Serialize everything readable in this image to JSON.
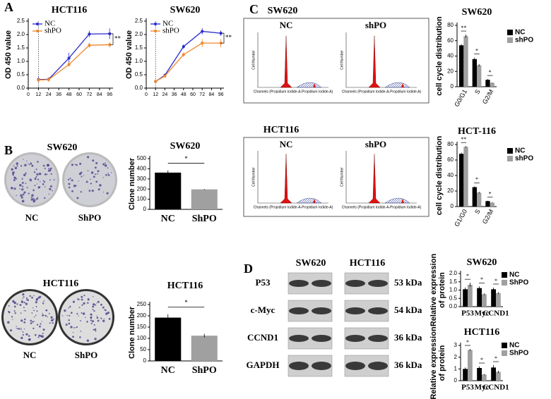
{
  "figure": {
    "panel_labels": [
      "A",
      "B",
      "C",
      "D"
    ],
    "colony": [
      {
        "title": "SW620",
        "labels": [
          "NC",
          "ShPO"
        ]
      },
      {
        "title": "HCT116",
        "labels": [
          "NC",
          "ShPO"
        ]
      }
    ],
    "flow": [
      {
        "title": "SW620",
        "labels": [
          "NC",
          "shPO"
        ]
      },
      {
        "title": "HCT116",
        "labels": [
          "NC",
          "shPO"
        ]
      }
    ],
    "flow_axes": {
      "y_label": "Cell Number",
      "x_label": "Channels (Propidium Iodide-A-Propidium Iodide-A)"
    },
    "western": {
      "columns": [
        "SW620",
        "HCT116"
      ],
      "rows": [
        "P53",
        "c-Myc",
        "CCND1",
        "GAPDH"
      ],
      "sizes": [
        "53 kDa",
        "54 kDa",
        "36 kDa",
        "36 kDa"
      ]
    }
  },
  "chart_data": [
    {
      "type": "line",
      "title": "HCT116",
      "y_label": "OD 450 value",
      "x": [
        12,
        24,
        48,
        72,
        96
      ],
      "xlim": [
        0,
        100
      ],
      "xticks": [
        0,
        12,
        24,
        36,
        48,
        60,
        72,
        84,
        96
      ],
      "ylim": [
        0,
        2.5
      ],
      "yticks": [
        {
          "value": 0,
          "label": "0.0"
        },
        {
          "value": 0.5,
          "label": "0.5"
        },
        {
          "value": 1,
          "label": "1.0"
        },
        {
          "value": 1.5,
          "label": "1.5"
        },
        {
          "value": 2,
          "label": "2.0"
        },
        {
          "value": 2.5,
          "label": "2.5"
        }
      ],
      "vline": 12,
      "annotation": "**",
      "series": [
        {
          "name": "NC",
          "color": "#2a2ad0",
          "values": [
            0.32,
            0.33,
            1.12,
            2.02,
            2.03
          ],
          "errors": [
            0.1,
            0.08,
            0.2,
            0.12,
            0.2
          ]
        },
        {
          "name": "shPO",
          "color": "#f0862a",
          "values": [
            0.3,
            0.32,
            0.88,
            1.6,
            1.62
          ],
          "errors": [
            0.08,
            0.08,
            0.08,
            0.1,
            0.1
          ]
        }
      ]
    },
    {
      "type": "line",
      "title": "SW620",
      "y_label": "OD 450 value",
      "x": [
        12,
        24,
        48,
        72,
        96
      ],
      "xlim": [
        0,
        100
      ],
      "xticks": [
        0,
        12,
        24,
        36,
        48,
        60,
        72,
        84,
        96
      ],
      "ylim": [
        0,
        2.5
      ],
      "yticks": [
        {
          "value": 0,
          "label": "0.0"
        },
        {
          "value": 0.5,
          "label": "0.5"
        },
        {
          "value": 1,
          "label": "1.0"
        },
        {
          "value": 1.5,
          "label": "1.5"
        },
        {
          "value": 2,
          "label": "2.0"
        },
        {
          "value": 2.5,
          "label": "2.5"
        }
      ],
      "vline": 12,
      "annotation": "**",
      "series": [
        {
          "name": "NC",
          "color": "#2a2ad0",
          "values": [
            0.25,
            0.48,
            1.55,
            2.12,
            2.05
          ],
          "errors": [
            0.05,
            0.05,
            0.08,
            0.12,
            0.1
          ]
        },
        {
          "name": "shPO",
          "color": "#f0862a",
          "values": [
            0.25,
            0.45,
            1.25,
            1.68,
            1.68
          ],
          "errors": [
            0.05,
            0.05,
            0.08,
            0.15,
            0.15
          ]
        }
      ]
    },
    {
      "type": "bar",
      "title": "SW620",
      "y_label": "Clone number",
      "categories": [
        "NC",
        "ShPO"
      ],
      "values": [
        362,
        197
      ],
      "errors": [
        22,
        4
      ],
      "colors": [
        "#000000",
        "#a0a0a0"
      ],
      "ylim": [
        0,
        500
      ],
      "yticks": [
        0,
        100,
        200,
        300,
        400,
        500
      ],
      "annotation": "*"
    },
    {
      "type": "bar",
      "title": "HCT116",
      "y_label": "Clone number",
      "categories": [
        "NC",
        "ShPO"
      ],
      "values": [
        192,
        112
      ],
      "errors": [
        15,
        8
      ],
      "colors": [
        "#000000",
        "#a0a0a0"
      ],
      "ylim": [
        0,
        250
      ],
      "yticks": [
        0,
        50,
        100,
        150,
        200,
        250
      ],
      "annotation": "*"
    },
    {
      "type": "bar",
      "title": "SW620",
      "y_label": "cell cycle distribution",
      "categories": [
        "G0/G1",
        "S",
        "G2/M"
      ],
      "ylim": [
        0,
        80
      ],
      "yticks": [
        0,
        20,
        40,
        60,
        80
      ],
      "significance": [
        "**",
        "*",
        "*"
      ],
      "series": [
        {
          "name": "NC",
          "color": "#000000",
          "values": [
            54,
            36,
            9
          ],
          "errors": [
            1.5,
            2,
            1
          ]
        },
        {
          "name": "shPO",
          "color": "#a0a0a0",
          "values": [
            66,
            28,
            5
          ],
          "errors": [
            2,
            1.5,
            0.5
          ]
        }
      ]
    },
    {
      "type": "bar",
      "title": "HCT-116",
      "y_label": "cell cycle distribution",
      "categories": [
        "G1/G0",
        "S",
        "G2/M"
      ],
      "ylim": [
        0,
        80
      ],
      "yticks": [
        0,
        20,
        40,
        60,
        80
      ],
      "significance": [
        "**",
        "*",
        "*"
      ],
      "series": [
        {
          "name": "NC",
          "color": "#000000",
          "values": [
            68,
            25,
            7
          ],
          "errors": [
            1.5,
            1,
            0.5
          ]
        },
        {
          "name": "shPO",
          "color": "#a0a0a0",
          "values": [
            77,
            18,
            5
          ],
          "errors": [
            1,
            1,
            0.5
          ]
        }
      ]
    },
    {
      "type": "bar",
      "title": "SW620",
      "y_label": [
        "Relative expression",
        "of protein"
      ],
      "categories": [
        "P53",
        "Myc",
        "CCND1"
      ],
      "ylim": [
        0,
        2
      ],
      "yticks": [
        {
          "value": 0,
          "label": "0.0"
        },
        {
          "value": 0.5,
          "label": "0.5"
        },
        {
          "value": 1,
          "label": "1.0"
        },
        {
          "value": 1.5,
          "label": "1.5"
        },
        {
          "value": 2,
          "label": "2.0"
        }
      ],
      "significance": [
        "*",
        "*",
        "*"
      ],
      "series": [
        {
          "name": "NC",
          "color": "#000000",
          "values": [
            1.05,
            1.12,
            1.05
          ],
          "errors": [
            0.1,
            0.1,
            0.1
          ]
        },
        {
          "name": "ShPO",
          "color": "#a0a0a0",
          "values": [
            1.32,
            0.75,
            0.82
          ],
          "errors": [
            0.12,
            0.05,
            0.05
          ]
        }
      ]
    },
    {
      "type": "bar",
      "title": "HCT116",
      "y_label": [
        "Relative expression",
        "of protein"
      ],
      "categories": [
        "P53",
        "Myc",
        "CCND1"
      ],
      "ylim": [
        0,
        3
      ],
      "yticks": [
        0,
        1,
        2,
        3
      ],
      "significance": [
        "*",
        "*",
        "*"
      ],
      "series": [
        {
          "name": "NC",
          "color": "#000000",
          "values": [
            1.0,
            1.08,
            1.12
          ],
          "errors": [
            0.12,
            0.12,
            0.2
          ]
        },
        {
          "name": "ShPO",
          "color": "#a0a0a0",
          "values": [
            2.62,
            0.52,
            0.75
          ],
          "errors": [
            0.08,
            0.05,
            0.1
          ]
        }
      ]
    }
  ]
}
